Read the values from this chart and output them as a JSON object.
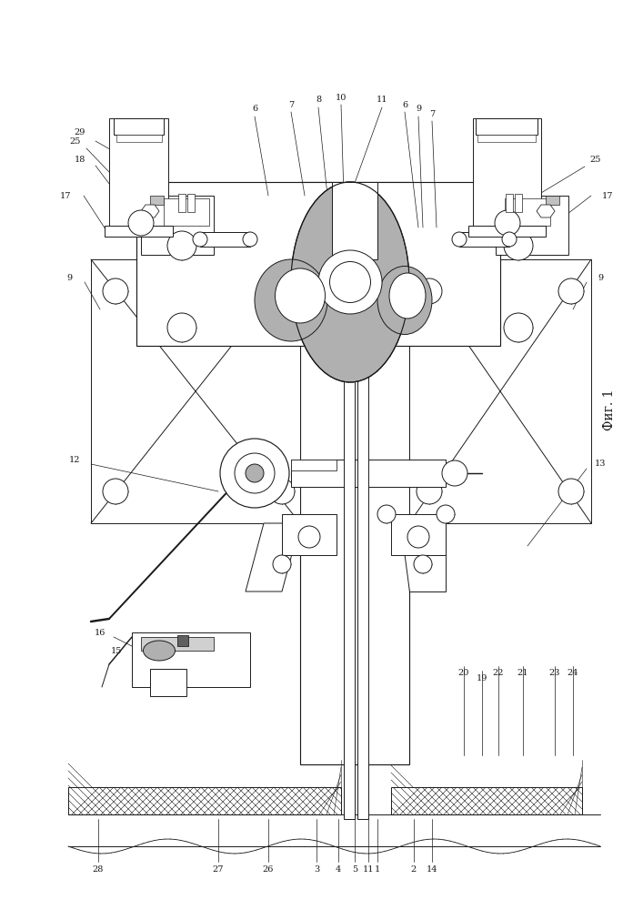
{
  "fig_label": "Фиг. 1",
  "background_color": "#ffffff",
  "line_color": "#1a1a1a",
  "line_width": 0.7,
  "figsize": [
    7.07,
    10.0
  ],
  "dpi": 100,
  "gray_fill": "#b0b0b0",
  "light_gray": "#d8d8d8",
  "dark_gray": "#707070"
}
